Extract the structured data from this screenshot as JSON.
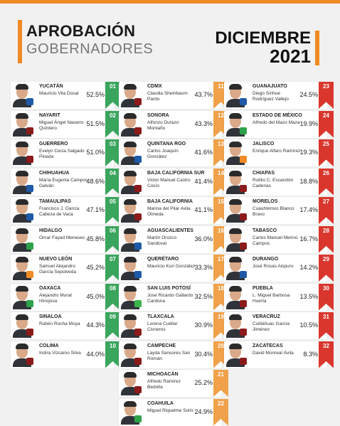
{
  "title": {
    "line1": "APROBACIÓN",
    "line2": "GOBERNADORES"
  },
  "date": {
    "month": "DICIEMBRE",
    "year": "2021"
  },
  "colors": {
    "accent": "#f08a24",
    "green": "#3aa55d",
    "orange": "#f0a14a",
    "red": "#d9372e",
    "pan": "#1e5aa8",
    "pri": "#2ea24a",
    "morena": "#8b1a1a",
    "mc": "#f08a24",
    "pvem": "#3bb44a"
  },
  "columns": [
    {
      "color": "#3aa55d",
      "rows": [
        {
          "rank": "01",
          "state": "YUCATÁN",
          "name": "Mauricio Vila Dosal",
          "pct": "52.5%",
          "party": "PAN"
        },
        {
          "rank": "02",
          "state": "NAYARIT",
          "name": "Miguel Ángel Navarro Quintero",
          "pct": "51.5%",
          "party": "MORENA"
        },
        {
          "rank": "03",
          "state": "GUERRERO",
          "name": "Evelyn Cecia Salgado Pineda",
          "pct": "51.0%",
          "party": "MORENA"
        },
        {
          "rank": "04",
          "state": "CHIHUAHUA",
          "name": "María Eugenia Campos Galván",
          "pct": "48.6%",
          "party": "PAN"
        },
        {
          "rank": "05",
          "state": "TAMAULIPAS",
          "name": "Francisco J. García Cabeza de Vaca",
          "pct": "47.1%",
          "party": "PAN"
        },
        {
          "rank": "06",
          "state": "HIDALGO",
          "name": "Omar Fayad Meneses",
          "pct": "45.8%",
          "party": "PRI"
        },
        {
          "rank": "07",
          "state": "NUEVO LEÓN",
          "name": "Samuel Alejandro García Sepúlveda",
          "pct": "45.2%",
          "party": "MC"
        },
        {
          "rank": "08",
          "state": "OAXACA",
          "name": "Alejandro Murat Hinojosa",
          "pct": "45.0%",
          "party": "PRI"
        },
        {
          "rank": "09",
          "state": "SINALOA",
          "name": "Rubén Rocha Moya",
          "pct": "44.3%",
          "party": "MORENA"
        },
        {
          "rank": "10",
          "state": "COLIMA",
          "name": "Indira Vizcaíno Silva",
          "pct": "44.0%",
          "party": "MORENA"
        }
      ]
    },
    {
      "color": "#f0a14a",
      "rows": [
        {
          "rank": "11",
          "state": "CDMX",
          "name": "Claudia Sheinbaum Pardo",
          "pct": "43.7%",
          "party": "MORENA"
        },
        {
          "rank": "12",
          "state": "SONORA",
          "name": "Alfonzo Durazo Montaño",
          "pct": "43.3%",
          "party": "MORENA"
        },
        {
          "rank": "13",
          "state": "QUINTANA ROO",
          "name": "Carlos Joaquín González",
          "pct": "41.6%",
          "party": "PAN"
        },
        {
          "rank": "14",
          "state": "BAJA CALIFORNIA SUR",
          "name": "Victor Manuel Castro Cosío",
          "pct": "41.4%",
          "party": "MORENA"
        },
        {
          "rank": "15",
          "state": "BAJA CALIFORNIA",
          "name": "Marina del Pilar Avila Olmeda",
          "pct": "41.1%",
          "party": "MORENA"
        },
        {
          "rank": "16",
          "state": "AGUASCALIENTES",
          "name": "Martín Orozco Sandoval",
          "pct": "36.0%",
          "party": "PAN"
        },
        {
          "rank": "17",
          "state": "QUERÉTARO",
          "name": "Mauricio Kuri González",
          "pct": "33.3%",
          "party": "PAN"
        },
        {
          "rank": "18",
          "state": "SAN LUIS POTOSÍ",
          "name": "José Ricardo Gallardo Cardona",
          "pct": "32.5%",
          "party": "PVEM"
        },
        {
          "rank": "19",
          "state": "TLAXCALA",
          "name": "Lorena Cuéllar Cisneros",
          "pct": "30.9%",
          "party": "MORENA"
        },
        {
          "rank": "20",
          "state": "CAMPECHE",
          "name": "Layda Sansores San Román",
          "pct": "30.4%",
          "party": "MORENA"
        },
        {
          "rank": "21",
          "state": "MICHOACÁN",
          "name": "Alfredo Ramírez Bedolla",
          "pct": "25.2%",
          "party": "MORENA"
        },
        {
          "rank": "22",
          "state": "COAHUILA",
          "name": "Miguel Riquelme Solís",
          "pct": "24.9%",
          "party": "PRI"
        }
      ]
    },
    {
      "color": "#d9372e",
      "rows": [
        {
          "rank": "23",
          "state": "GUANAJUATO",
          "name": "Diego Sinhue Rodríguez Vallejo",
          "pct": "24.5%",
          "party": "PAN"
        },
        {
          "rank": "24",
          "state": "ESTADO DE MÉXICO",
          "name": "Alfredo del Mazo Maza",
          "pct": "19.9%",
          "party": "PRI"
        },
        {
          "rank": "25",
          "state": "JALISCO",
          "name": "Enrique Alfaro Ramírez",
          "pct": "19.3%",
          "party": "MC"
        },
        {
          "rank": "26",
          "state": "CHIAPAS",
          "name": "Rutilio C. Escandón Cadenas",
          "pct": "18.8%",
          "party": "MORENA"
        },
        {
          "rank": "27",
          "state": "MORELOS",
          "name": "Cuauhtémoc Blanco Bravo",
          "pct": "17.4%",
          "party": "MORENA"
        },
        {
          "rank": "28",
          "state": "TABASCO",
          "name": "Carlos Manuel Merino Campos",
          "pct": "16.7%",
          "party": "MORENA"
        },
        {
          "rank": "29",
          "state": "DURANGO",
          "name": "José Rosas Aispuro",
          "pct": "14.2%",
          "party": "PAN"
        },
        {
          "rank": "30",
          "state": "PUEBLA",
          "name": "L. Miguel Barbosa Huerta",
          "pct": "13.5%",
          "party": "MORENA"
        },
        {
          "rank": "31",
          "state": "VERACRUZ",
          "name": "Cuitláhuac García Jiménez",
          "pct": "10.5%",
          "party": "MORENA"
        },
        {
          "rank": "32",
          "state": "ZACATECAS",
          "name": "David Monreal Ávila",
          "pct": "8.3%",
          "party": "MORENA"
        }
      ]
    }
  ]
}
